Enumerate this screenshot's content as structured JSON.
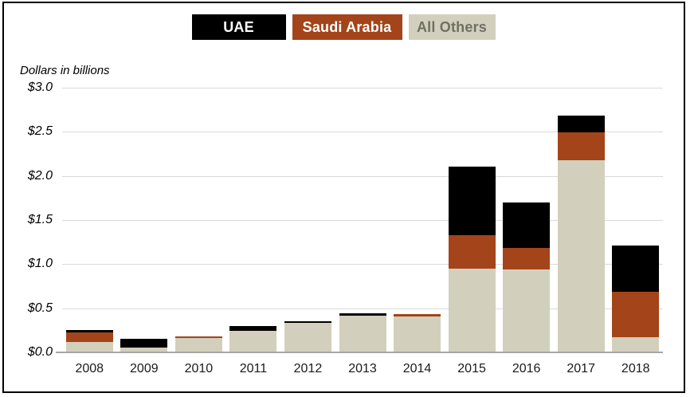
{
  "figure": {
    "units_note": "Dollars in billions"
  },
  "legend": {
    "items": [
      {
        "label": "UAE",
        "bg": "#000000",
        "fg": "#FFFFFF"
      },
      {
        "label": "Saudi Arabia",
        "bg": "#A4441A",
        "fg": "#FFFFFF"
      },
      {
        "label": "All Others",
        "bg": "#D2D0BC",
        "fg": "#6F6F64"
      }
    ]
  },
  "chart_data": {
    "type": "bar",
    "stacked": true,
    "title": "",
    "xlabel": "",
    "ylabel": "Dollars in billions",
    "ylim": [
      0,
      3.0
    ],
    "ytick_labels": [
      "$3.0",
      "$2.5",
      "$2.0",
      "$1.5",
      "$1.0",
      "$0.5",
      "$0.0"
    ],
    "grid": true,
    "legend_position": "top-center",
    "categories": [
      "2008",
      "2009",
      "2010",
      "2011",
      "2012",
      "2013",
      "2014",
      "2015",
      "2016",
      "2017",
      "2018"
    ],
    "series": [
      {
        "name": "UAE",
        "color": "#000000",
        "values": [
          0.02,
          0.1,
          0.0,
          0.06,
          0.02,
          0.02,
          0.0,
          0.78,
          0.52,
          0.19,
          0.52
        ]
      },
      {
        "name": "Saudi Arabia",
        "color": "#A4441A",
        "values": [
          0.11,
          0.0,
          0.02,
          0.0,
          0.0,
          0.0,
          0.02,
          0.38,
          0.24,
          0.31,
          0.52
        ]
      },
      {
        "name": "All Others",
        "color": "#D2D0BC",
        "values": [
          0.12,
          0.05,
          0.16,
          0.24,
          0.33,
          0.42,
          0.41,
          0.95,
          0.94,
          2.18,
          0.17
        ]
      }
    ],
    "stack_order_bottom_to_top": [
      "All Others",
      "Saudi Arabia",
      "UAE"
    ]
  },
  "colors": {
    "gridline": "#D9D9D9",
    "axis_line": "#A6A6A6",
    "frame_border": "#000000",
    "background": "#FFFFFF"
  }
}
